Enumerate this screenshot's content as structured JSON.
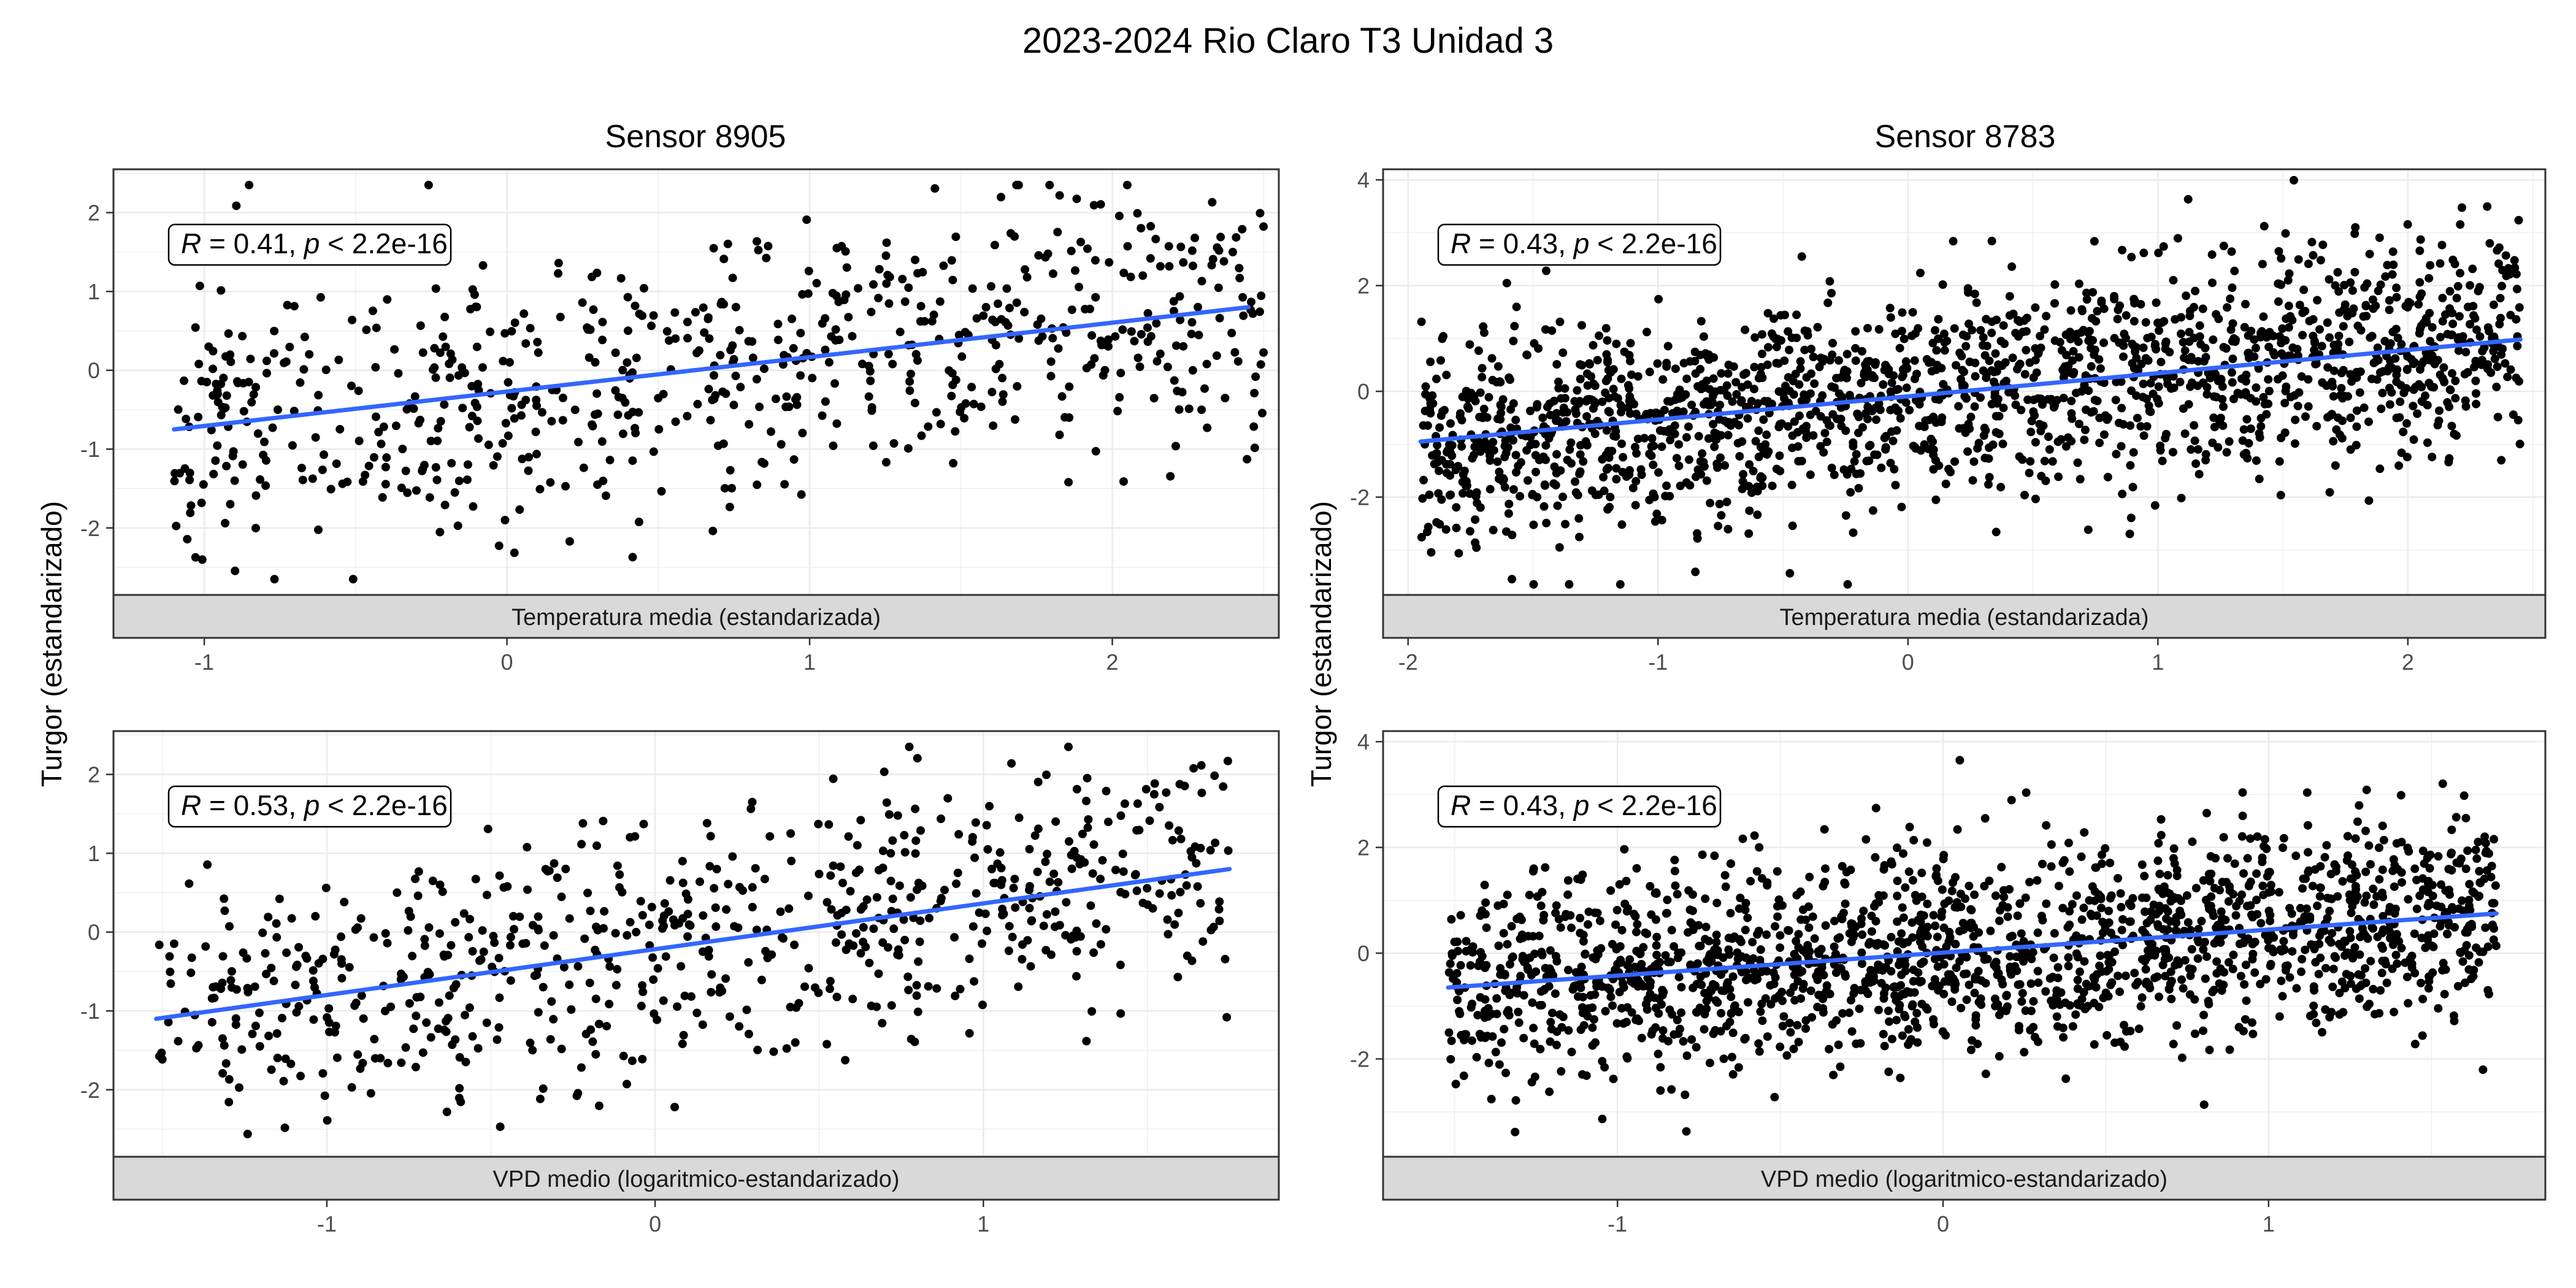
{
  "figure": {
    "title": "2023-2024 Rio Claro T3 Unidad 3",
    "ylabel": "Turgor (estandarizado)",
    "colors": {
      "points": "#000000",
      "fit_line": "#3366FF",
      "grid": "#ebebeb",
      "strip": "#d9d9d9",
      "border": "#333333"
    }
  },
  "columns": [
    {
      "title": "Sensor 8905"
    },
    {
      "title": "Sensor 8783"
    }
  ],
  "chart_data": [
    {
      "type": "scatter",
      "sensor": "Sensor 8905",
      "strip_label": "Temperatura media (estandarizada)",
      "xlim": [
        -1.3,
        2.55
      ],
      "ylim": [
        -2.85,
        2.55
      ],
      "xticks": [
        -1,
        0,
        1,
        2
      ],
      "yticks": [
        -2,
        -1,
        0,
        1,
        2
      ],
      "annotation": {
        "r_label": "R",
        "r_value": "0.41",
        "p_label": "p",
        "p_value": "< 2.2e-16",
        "position": "top-left"
      },
      "fit": {
        "x": [
          -1.1,
          2.45
        ],
        "y": [
          -0.75,
          0.8
        ]
      },
      "scatter": {
        "n": 700,
        "x_range": [
          -1.1,
          2.5
        ],
        "slope": 0.44,
        "intercept": -0.27,
        "resid_sd": 0.9,
        "seed": 11
      }
    },
    {
      "type": "scatter",
      "sensor": "Sensor 8783",
      "strip_label": "Temperatura media (estandarizada)",
      "xlim": [
        -2.1,
        2.55
      ],
      "ylim": [
        -3.85,
        4.2
      ],
      "xticks": [
        -2,
        -1,
        0,
        1,
        2
      ],
      "yticks": [
        -2,
        0,
        2,
        4
      ],
      "annotation": {
        "r_label": "R",
        "r_value": "0.43",
        "p_label": "p",
        "p_value": "< 2.2e-16",
        "position": "top-left"
      },
      "fit": {
        "x": [
          -1.95,
          2.45
        ],
        "y": [
          -0.95,
          0.98
        ]
      },
      "scatter": {
        "n": 1800,
        "x_range": [
          -1.95,
          2.45
        ],
        "slope": 0.44,
        "intercept": -0.1,
        "resid_sd": 1.0,
        "seed": 23
      }
    },
    {
      "type": "scatter",
      "sensor": "Sensor 8905",
      "strip_label": "VPD medio (logaritmico-estandarizado)",
      "xlim": [
        -1.65,
        1.9
      ],
      "ylim": [
        -2.85,
        2.55
      ],
      "xticks": [
        -1,
        0,
        1
      ],
      "yticks": [
        -2,
        -1,
        0,
        1,
        2
      ],
      "annotation": {
        "r_label": "R",
        "r_value": "0.53",
        "p_label": "p",
        "p_value": "< 2.2e-16",
        "position": "top-left"
      },
      "fit": {
        "x": [
          -1.52,
          1.75
        ],
        "y": [
          -1.1,
          0.8
        ]
      },
      "scatter": {
        "n": 700,
        "x_range": [
          -1.52,
          1.75
        ],
        "slope": 0.58,
        "intercept": -0.2,
        "resid_sd": 0.8,
        "seed": 37
      }
    },
    {
      "type": "scatter",
      "sensor": "Sensor 8783",
      "strip_label": "VPD medio (logaritmico-estandarizado)",
      "xlim": [
        -1.72,
        1.85
      ],
      "ylim": [
        -3.85,
        4.2
      ],
      "xticks": [
        -1,
        0,
        1
      ],
      "yticks": [
        -2,
        0,
        2,
        4
      ],
      "annotation": {
        "r_label": "R",
        "r_value": "0.43",
        "p_label": "p",
        "p_value": "< 2.2e-16",
        "position": "top-left"
      },
      "fit": {
        "x": [
          -1.52,
          1.7
        ],
        "y": [
          -0.65,
          0.75
        ]
      },
      "scatter": {
        "n": 1800,
        "x_range": [
          -1.52,
          1.7
        ],
        "slope": 0.44,
        "intercept": 0.0,
        "resid_sd": 0.95,
        "seed": 51
      }
    }
  ]
}
